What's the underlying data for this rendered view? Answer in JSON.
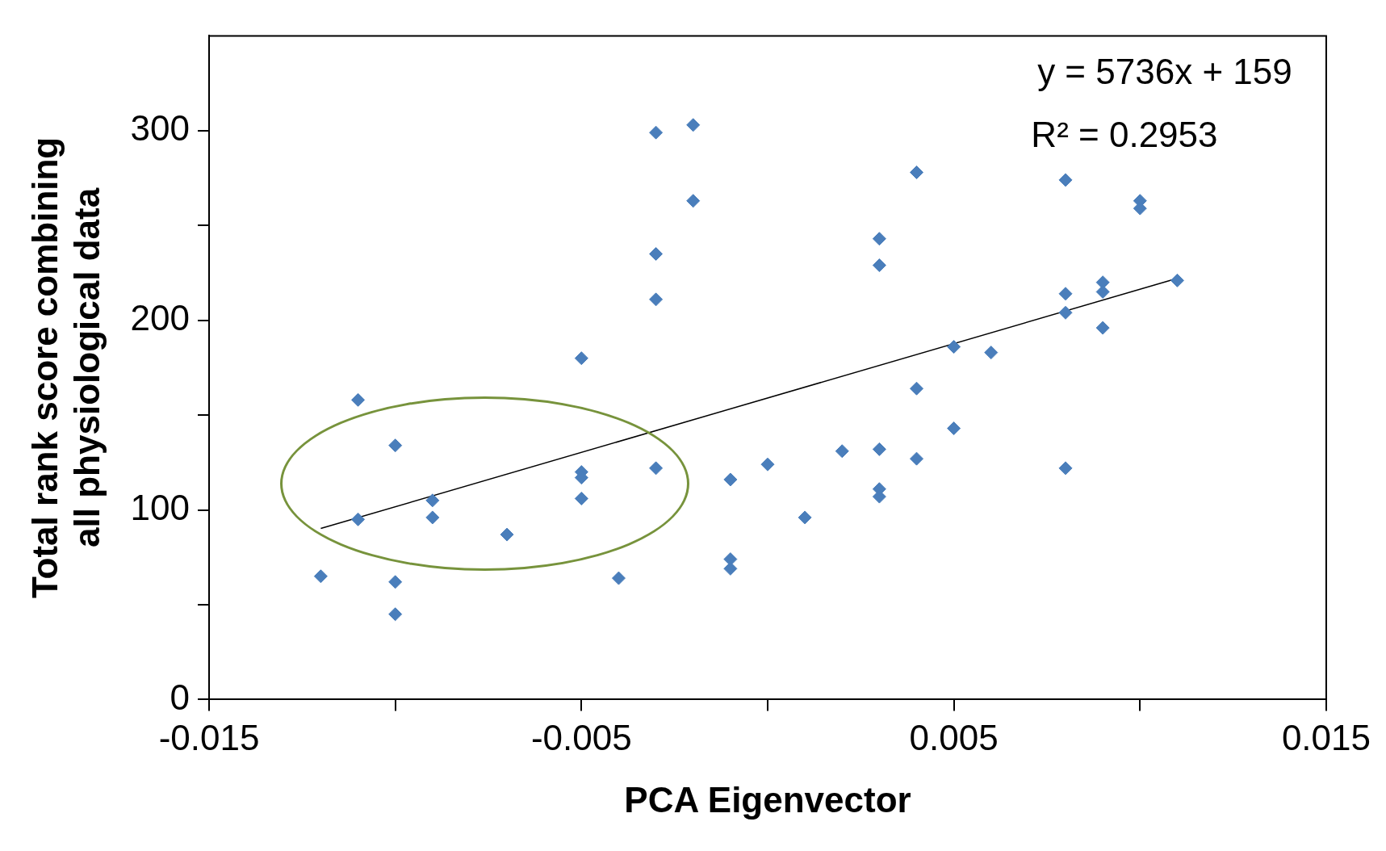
{
  "chart_data": {
    "type": "scatter",
    "xlabel": "PCA Eigenvector",
    "ylabel": "Total rank score combining all physiological data",
    "xlim": [
      -0.015,
      0.015
    ],
    "xticks": [
      -0.015,
      {
        "value": -0.01,
        "label": null
      },
      -0.005,
      {
        "value": 0,
        "label": null
      },
      0.005,
      {
        "value": 0.01,
        "label": null
      },
      0.015
    ],
    "ylim": [
      0,
      350
    ],
    "yticks": [
      0,
      {
        "value": 50,
        "label": null
      },
      100,
      {
        "value": 150,
        "label": null
      },
      200,
      {
        "value": 250,
        "label": null
      },
      300
    ],
    "grid": false,
    "legend": false,
    "marker": "diamond",
    "annotations": [
      "y = 5736x + 159",
      "R² = 0.2953"
    ],
    "series": [
      {
        "color": "#4a7ebb",
        "x": [
          -0.012,
          -0.011,
          -0.011,
          -0.01,
          -0.01,
          -0.01,
          -0.009,
          -0.009,
          -0.007,
          -0.005,
          -0.005,
          -0.005,
          -0.005,
          -0.004,
          -0.003,
          -0.003,
          -0.003,
          -0.003,
          -0.002,
          -0.002,
          -0.001,
          -0.001,
          -0.001,
          0,
          0.001,
          0.002,
          0.003,
          0.003,
          0.003,
          0.003,
          0.003,
          0.004,
          0.004,
          0.004,
          0.005,
          0.005,
          0.006,
          0.008,
          0.008,
          0.008,
          0.008,
          0.009,
          0.009,
          0.009,
          0.01,
          0.01,
          0.011
        ],
        "values": [
          65,
          158,
          95,
          134,
          62,
          45,
          105,
          96,
          87,
          180,
          120,
          117,
          106,
          64,
          299,
          235,
          211,
          122,
          303,
          263,
          116,
          74,
          69,
          124,
          96,
          131,
          243,
          229,
          132,
          111,
          107,
          278,
          164,
          127,
          186,
          143,
          183,
          274,
          214,
          204,
          122,
          220,
          215,
          196,
          263,
          259,
          221
        ]
      },
      {
        "type": "line",
        "color": "#000000",
        "marker": "none",
        "x": [
          -0.012,
          0.011
        ],
        "values": [
          90.2,
          222.1
        ]
      }
    ]
  }
}
